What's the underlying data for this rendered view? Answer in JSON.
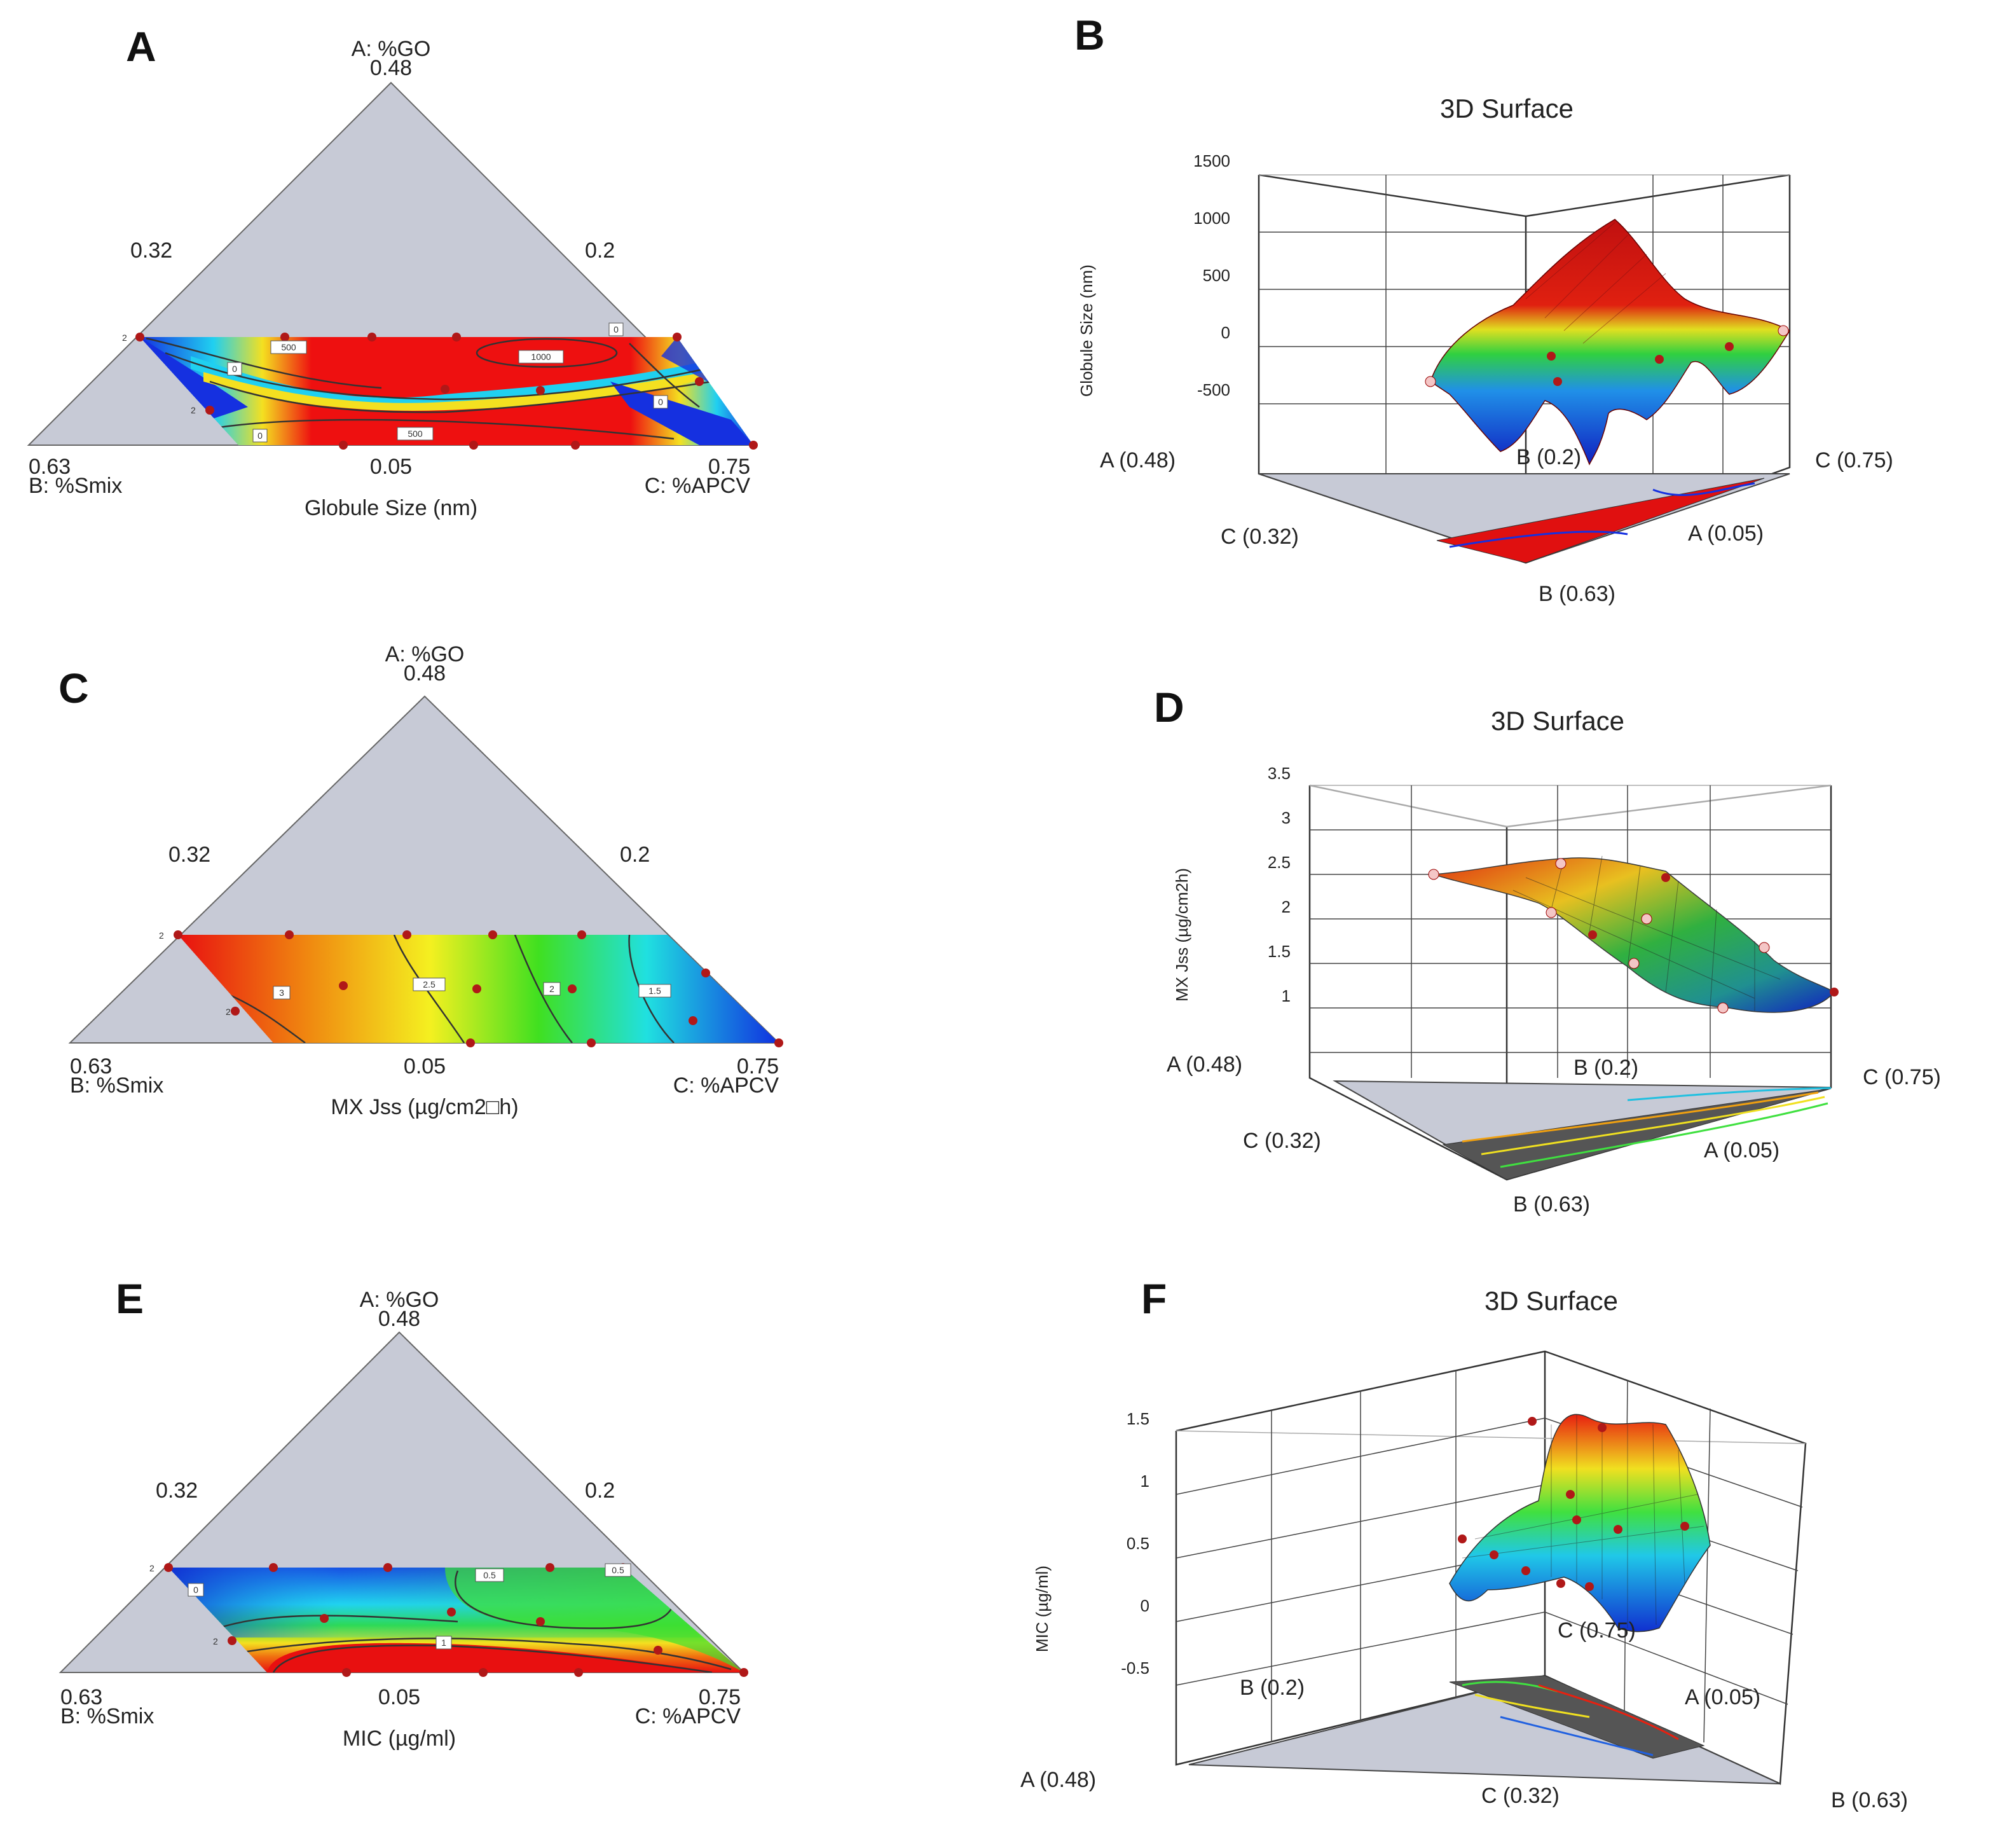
{
  "colors": {
    "triangle_gray": "#c7cad6",
    "surface_low": "#1030d0",
    "surface_mid": "#20e020",
    "surface_high": "#e01010",
    "design_point": "#b01818",
    "design_point_light": "#f4c6c6"
  },
  "chart_data": [
    {
      "panel": "A",
      "type": "heatmap",
      "subtype": "ternary-contour",
      "apex_top": {
        "name": "A: %GO",
        "value": "0.48"
      },
      "apex_left": {
        "name": "B: %Smix",
        "value": "0.63"
      },
      "apex_right": {
        "name": "C: %APCV",
        "value": "0.75"
      },
      "edge_labels": {
        "left": "0.32",
        "right": "0.2",
        "bottom": "0.05"
      },
      "xlabel": "Globule Size (nm)",
      "contour_labels": [
        "500",
        "1000",
        "0",
        "0",
        "500",
        "0",
        "0"
      ],
      "replicate_marks": [
        "2",
        "2"
      ]
    },
    {
      "panel": "B",
      "type": "heatmap",
      "subtype": "3d-surface",
      "title": "3D Surface",
      "ylabel": "Globule Size (nm)",
      "zticks": [
        "1500",
        "1000",
        "500",
        "0",
        "-500"
      ],
      "zlim": [
        -500,
        1500
      ],
      "corner_labels": [
        "A (0.48)",
        "B (0.2)",
        "C (0.75)",
        "C (0.32)",
        "A (0.05)",
        "B (0.63)"
      ]
    },
    {
      "panel": "C",
      "type": "heatmap",
      "subtype": "ternary-contour",
      "apex_top": {
        "name": "A: %GO",
        "value": "0.48"
      },
      "apex_left": {
        "name": "B: %Smix",
        "value": "0.63"
      },
      "apex_right": {
        "name": "C: %APCV",
        "value": "0.75"
      },
      "edge_labels": {
        "left": "0.32",
        "right": "0.2",
        "bottom": "0.05"
      },
      "xlabel": "MX Jss (µg/cm2□h)",
      "contour_labels": [
        "3",
        "2.5",
        "2",
        "1.5"
      ],
      "replicate_marks": [
        "2",
        "2"
      ]
    },
    {
      "panel": "D",
      "type": "heatmap",
      "subtype": "3d-surface",
      "title": "3D Surface",
      "ylabel": "MX Jss (µg/cm2h)",
      "zticks": [
        "3.5",
        "3",
        "2.5",
        "2",
        "1.5",
        "1"
      ],
      "zlim": [
        1,
        3.5
      ],
      "corner_labels": [
        "A (0.48)",
        "B (0.2)",
        "C (0.75)",
        "C (0.32)",
        "A (0.05)",
        "B (0.63)"
      ]
    },
    {
      "panel": "E",
      "type": "heatmap",
      "subtype": "ternary-contour",
      "apex_top": {
        "name": "A: %GO",
        "value": "0.48"
      },
      "apex_left": {
        "name": "B: %Smix",
        "value": "0.63"
      },
      "apex_right": {
        "name": "C: %APCV",
        "value": "0.75"
      },
      "edge_labels": {
        "left": "0.32",
        "right": "0.2",
        "bottom": "0.05"
      },
      "xlabel": "MIC (µg/ml)",
      "contour_labels": [
        "0.5",
        "0",
        "0.5",
        "1"
      ],
      "replicate_marks": [
        "2",
        "2"
      ]
    },
    {
      "panel": "F",
      "type": "heatmap",
      "subtype": "3d-surface",
      "title": "3D Surface",
      "ylabel": "MIC (µg/ml)",
      "zticks": [
        "1.5",
        "1",
        "0.5",
        "0",
        "-0.5"
      ],
      "zlim": [
        -0.5,
        1.5
      ],
      "corner_labels": [
        "B (0.2)",
        "C (0.75)",
        "A (0.05)",
        "A (0.48)",
        "C (0.32)",
        "B (0.63)"
      ]
    }
  ]
}
